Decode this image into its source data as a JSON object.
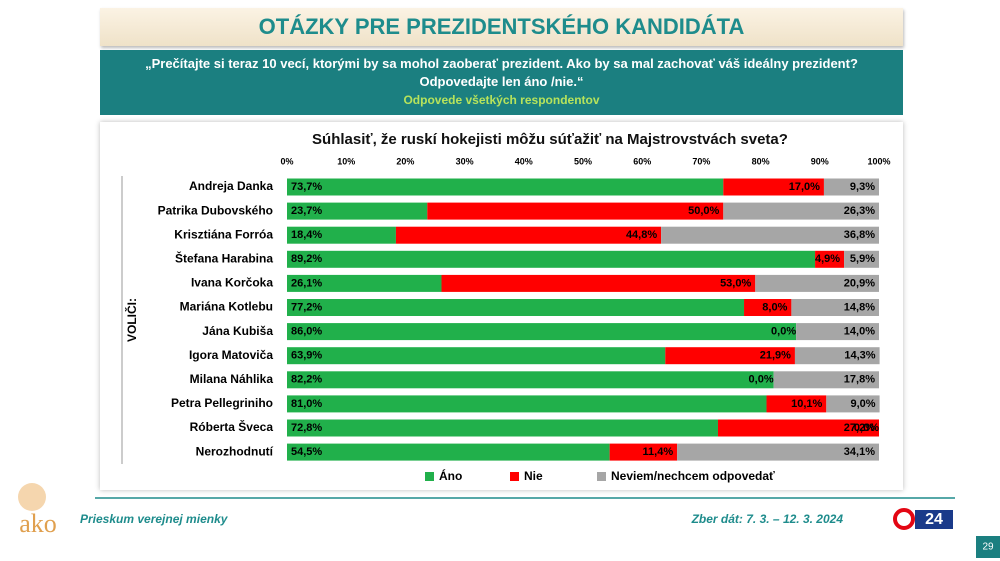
{
  "slide": {
    "title": "OTÁZKY PRE PREZIDENTSKÉHO KANDIDÁTA",
    "question": "„Prečítajte si teraz 10 vecí, ktorými by sa mohol zaoberať prezident. Ako by sa mal zachovať váš ideálny prezident? Odpovedajte len áno /nie.“",
    "subtitle": "Odpovede všetkých respondentov",
    "footer_left": "Prieskum verejnej mienky",
    "footer_right": "Zber dát: 7. 3. – 12. 3. 2024",
    "logo": "ako",
    "tv_logo": "24",
    "page": "29"
  },
  "chart_data": {
    "type": "stacked-bar-horizontal",
    "title": "Súhlasiť, že ruskí hokejisti môžu súťažiť na Majstrovstvách  sveta?",
    "y_label": "VOLIČI:",
    "categories": [
      "Andreja Danka",
      "Patrika Dubovského",
      "Krisztiána Forróa",
      "Štefana Harabina",
      "Ivana Korčoka",
      "Mariána Kotlebu",
      "Jána Kubiša",
      "Igora Matoviča",
      "Milana Náhlika",
      "Petra Pellegriniho",
      "Róberta Šveca",
      "Nerozhodnutí"
    ],
    "series": [
      {
        "name": "Áno",
        "color": "#21b04b",
        "values": [
          73.7,
          23.7,
          18.4,
          89.2,
          26.1,
          77.2,
          86.0,
          63.9,
          82.2,
          81.0,
          72.8,
          54.5
        ],
        "value_labels": [
          "73,7%",
          "23,7%",
          "18,4%",
          "89,2%",
          "26,1%",
          "77,2%",
          "86,0%",
          "63,9%",
          "82,2%",
          "81,0%",
          "72,8%",
          "54,5%"
        ]
      },
      {
        "name": "Nie",
        "color": "#ff0000",
        "values": [
          17.0,
          50.0,
          44.8,
          4.9,
          53.0,
          8.0,
          0.0,
          21.9,
          0.0,
          10.1,
          27.2,
          11.4
        ],
        "value_labels": [
          "17,0%",
          "50,0%",
          "44,8%",
          "4,9%",
          "53,0%",
          "8,0%",
          "0,0%",
          "21,9%",
          "0,0%",
          "10,1%",
          "27,2%",
          "11,4%"
        ]
      },
      {
        "name": "Neviem/nechcem odpovedať",
        "color": "#a6a6a6",
        "values": [
          9.3,
          26.3,
          36.8,
          5.9,
          20.9,
          14.8,
          14.0,
          14.3,
          17.8,
          9.0,
          0.0,
          34.1
        ],
        "value_labels": [
          "9,3%",
          "26,3%",
          "36,8%",
          "5,9%",
          "20,9%",
          "14,8%",
          "14,0%",
          "14,3%",
          "17,8%",
          "9,0%",
          "0,0%",
          "34,1%"
        ]
      }
    ],
    "xlim": [
      0,
      100
    ],
    "xticks": [
      {
        "value": 0,
        "label": "0%"
      },
      {
        "value": 10,
        "label": "10%"
      },
      {
        "value": 20,
        "label": "20%"
      },
      {
        "value": 30,
        "label": "30%"
      },
      {
        "value": 40,
        "label": "40%"
      },
      {
        "value": 50,
        "label": "50%"
      },
      {
        "value": 60,
        "label": "60%"
      },
      {
        "value": 70,
        "label": "70%"
      },
      {
        "value": 80,
        "label": "80%"
      },
      {
        "value": 90,
        "label": "90%"
      },
      {
        "value": 100,
        "label": "100%"
      }
    ],
    "legend": "bottom"
  }
}
